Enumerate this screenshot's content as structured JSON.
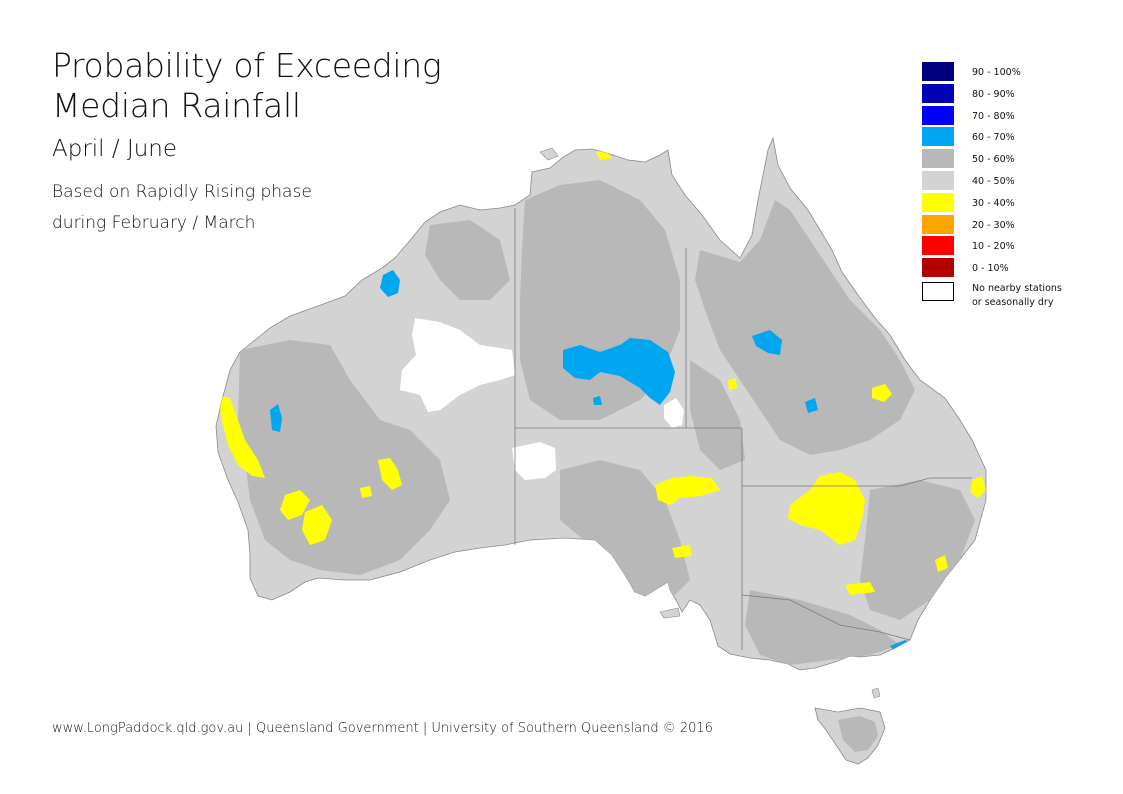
{
  "title": {
    "line1": "Probability of Exceeding",
    "line2": "Median Rainfall"
  },
  "subtitle": "April / June",
  "note": {
    "line1": "Based on Rapidly Rising phase",
    "line2": "during February / March"
  },
  "legend": [
    {
      "label": "90 - 100%",
      "color": "#00007f"
    },
    {
      "label": "80 - 90%",
      "color": "#0000b4"
    },
    {
      "label": "70 - 80%",
      "color": "#0000ff"
    },
    {
      "label": "60 - 70%",
      "color": "#00a6f0"
    },
    {
      "label": "50 - 60%",
      "color": "#b8b8b8"
    },
    {
      "label": "40 - 50%",
      "color": "#d3d3d3"
    },
    {
      "label": "30 - 40%",
      "color": "#ffff00"
    },
    {
      "label": "20 - 30%",
      "color": "#ffa500"
    },
    {
      "label": "10 - 20%",
      "color": "#ff0000"
    },
    {
      "label": "0 - 10%",
      "color": "#b30000"
    }
  ],
  "legend_nodata": {
    "line1": "No nearby stations",
    "line2": "or seasonally dry",
    "color": "#ffffff"
  },
  "footer": "www.LongPaddock.qld.gov.au | Queensland Government | University of Southern Queensland © 2016"
}
